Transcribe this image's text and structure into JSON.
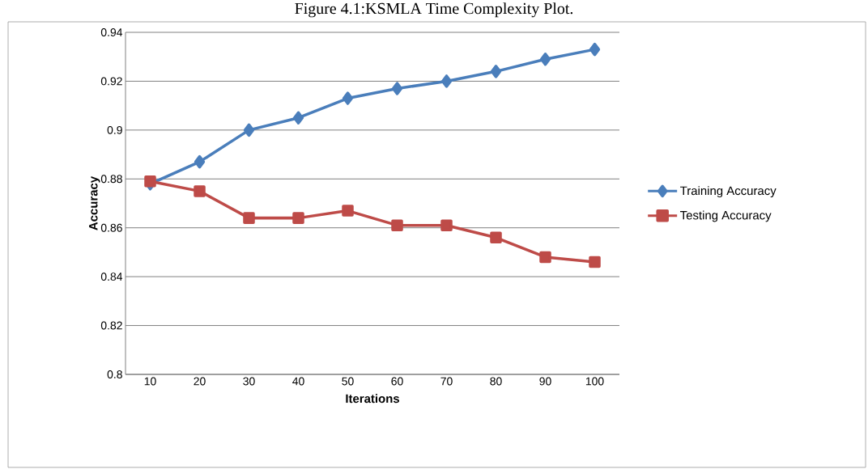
{
  "chart_data": {
    "type": "line",
    "title": "Figure 4.1:KSMLA Time Complexity Plot.",
    "xlabel": "Iterations",
    "ylabel": "Accuracy",
    "categories": [
      "10",
      "20",
      "30",
      "40",
      "50",
      "60",
      "70",
      "80",
      "90",
      "100"
    ],
    "series": [
      {
        "name": "Training Accuracy",
        "color": "#4a7ebb",
        "marker": "diamond",
        "values": [
          0.878,
          0.887,
          0.9,
          0.905,
          0.913,
          0.917,
          0.92,
          0.924,
          0.929,
          0.933
        ]
      },
      {
        "name": "Testing Accuracy",
        "color": "#be4b48",
        "marker": "square",
        "values": [
          0.879,
          0.875,
          0.864,
          0.864,
          0.867,
          0.861,
          0.861,
          0.856,
          0.848,
          0.846
        ]
      }
    ],
    "ylim": [
      0.8,
      0.94
    ],
    "yticks": [
      {
        "value": 0.8,
        "label": "0.8"
      },
      0.82,
      0.84,
      0.86,
      0.88,
      {
        "value": 0.9,
        "label": "0.9"
      },
      0.92,
      0.94
    ],
    "grid": "y",
    "legend": "right",
    "line_style": "solid"
  }
}
